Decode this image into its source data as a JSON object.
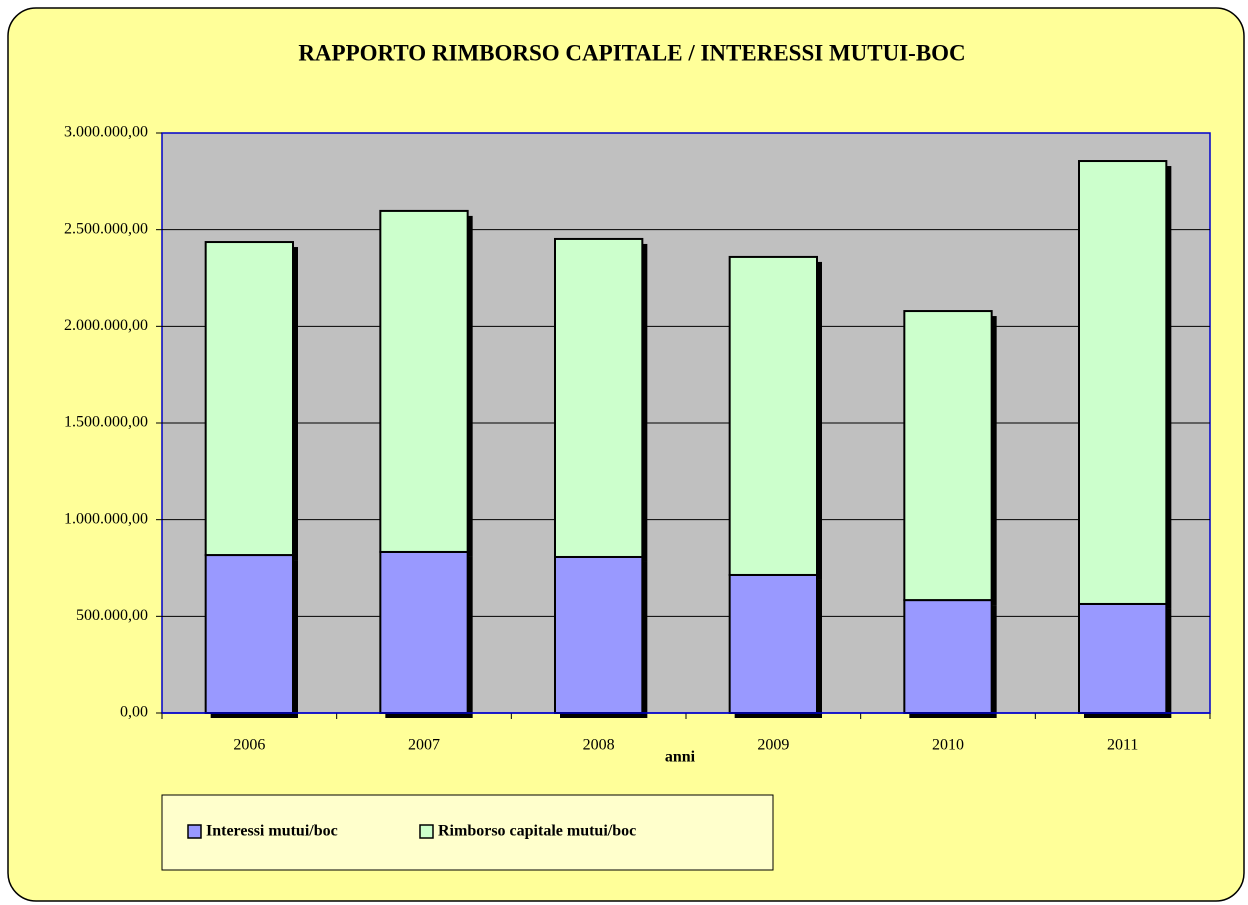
{
  "chart_data": {
    "type": "bar",
    "stacked": true,
    "title": "RAPPORTO RIMBORSO CAPITALE / INTERESSI MUTUI-BOC",
    "x_label": "anni",
    "categories": [
      "2006",
      "2007",
      "2008",
      "2009",
      "2010",
      "2011"
    ],
    "series": [
      {
        "name": "Interessi mutui/boc",
        "color": "#9999ff",
        "values": [
          817000,
          833000,
          807000,
          714000,
          584000,
          564000
        ]
      },
      {
        "name": "Rimborso capitale mutui/boc",
        "color": "#ccffcc",
        "values": [
          1619000,
          1764000,
          1645000,
          1645000,
          1495000,
          2291000
        ]
      }
    ],
    "ylim": [
      0,
      3000000
    ],
    "yticks": [
      {
        "value": 0,
        "label": "0,00"
      },
      {
        "value": 500000,
        "label": "500.000,00"
      },
      {
        "value": 1000000,
        "label": "1.000.000,00"
      },
      {
        "value": 1500000,
        "label": "1.500.000,00"
      },
      {
        "value": 2000000,
        "label": "2.000.000,00"
      },
      {
        "value": 2500000,
        "label": "2.500.000,00"
      },
      {
        "value": 3000000,
        "label": "3.000.000,00"
      }
    ],
    "grid": true,
    "legend": "bottom"
  }
}
